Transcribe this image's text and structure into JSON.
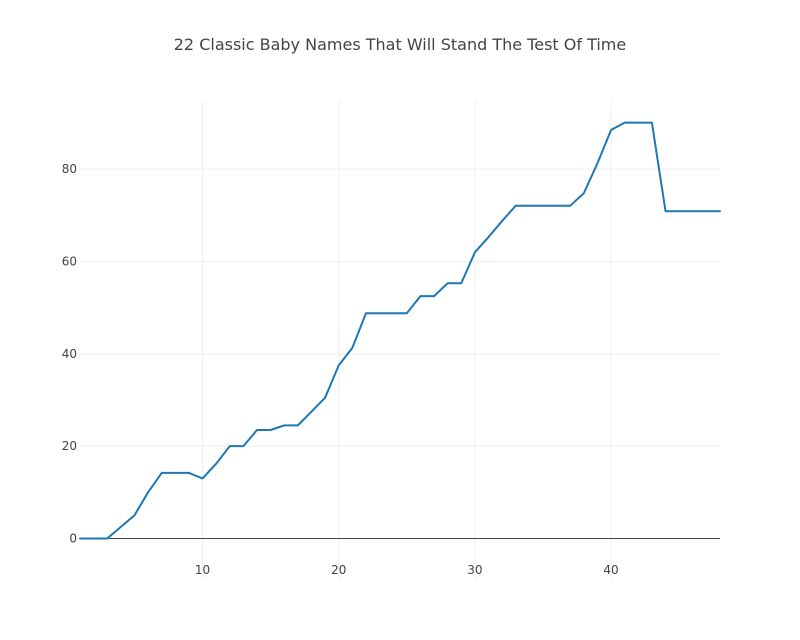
{
  "chart_data": {
    "type": "line",
    "title": "22 Classic Baby Names That Will Stand The Test Of Time",
    "xlabel": "",
    "ylabel": "",
    "xlim": [
      1,
      48
    ],
    "ylim": [
      -9,
      95
    ],
    "grid": true,
    "legend": "none",
    "x_ticks": [
      10,
      20,
      30,
      40
    ],
    "y_ticks": [
      0,
      20,
      40,
      60,
      80
    ],
    "series": [
      {
        "color": "#1f77b4",
        "x": [
          1,
          2,
          3,
          4,
          5,
          6,
          7,
          8,
          9,
          10,
          11,
          12,
          13,
          14,
          15,
          16,
          17,
          18,
          19,
          20,
          21,
          22,
          23,
          24,
          25,
          26,
          27,
          28,
          29,
          30,
          31,
          32,
          33,
          34,
          35,
          36,
          37,
          38,
          39,
          40,
          41,
          42,
          43,
          44,
          45,
          46,
          47,
          48
        ],
        "y": [
          0,
          0,
          0,
          2.5,
          5,
          10,
          14.2,
          14.2,
          14.2,
          13,
          16.2,
          20,
          20,
          23.5,
          23.5,
          24.5,
          24.5,
          27.5,
          30.5,
          37.5,
          41.3,
          48.8,
          48.8,
          48.8,
          48.8,
          52.5,
          52.5,
          55.3,
          55.3,
          62,
          65.3,
          68.8,
          72.1,
          72.1,
          72.1,
          72.1,
          72.1,
          74.8,
          81.3,
          88.5,
          90.1,
          90.1,
          90.1,
          70.9,
          70.9,
          70.9,
          70.9,
          70.9
        ]
      }
    ]
  }
}
